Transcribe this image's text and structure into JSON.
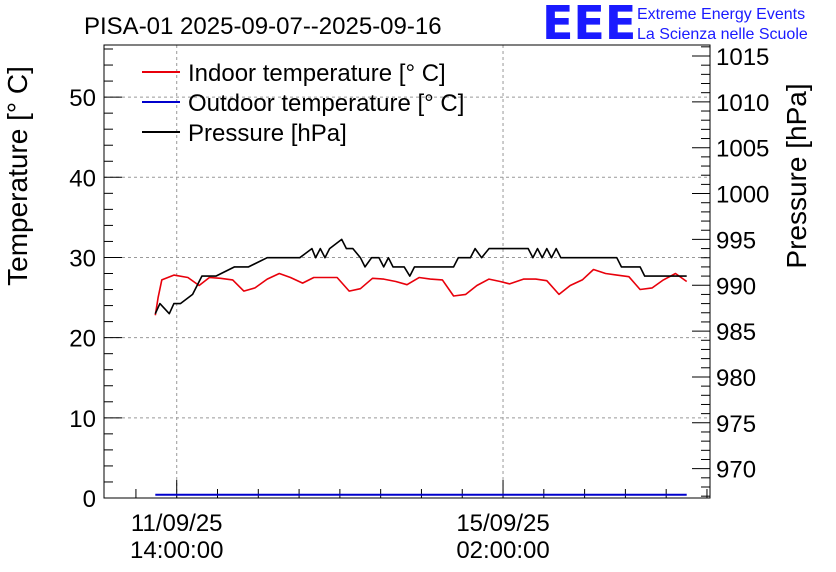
{
  "chart_data": {
    "type": "line",
    "title": "PISA-01 2025-09-07--2025-09-16",
    "brand": {
      "logo_text": "EEE",
      "line1": "Extreme Energy Events",
      "line2": "La Scienza nelle Scuole"
    },
    "x_ticks": [
      {
        "label_line1": "11/09/25",
        "label_line2": "14:00:00",
        "x_days": 4.58
      },
      {
        "label_line1": "15/09/25",
        "label_line2": "02:00:00",
        "x_days": 8.08
      }
    ],
    "x_range_days": [
      3.8,
      10.3
    ],
    "left_axis": {
      "label": "Temperature [° C]",
      "ylim": [
        0,
        56.5
      ],
      "ticks": [
        0,
        10,
        20,
        30,
        40,
        50
      ]
    },
    "right_axis": {
      "label": "Pressure [hPa]",
      "ylim": [
        966.8,
        1016.2
      ],
      "ticks": [
        970,
        975,
        980,
        985,
        990,
        995,
        1000,
        1005,
        1010,
        1015
      ]
    },
    "colors": {
      "indoor": "#e8000b",
      "outdoor": "#0000cc",
      "pressure": "#000000",
      "grid": "#999999"
    },
    "series": [
      {
        "name": "Indoor temperature [° C]",
        "axis": "left",
        "x": [
          4.35,
          4.38,
          4.42,
          4.55,
          4.7,
          4.82,
          4.93,
          5.05,
          5.18,
          5.3,
          5.42,
          5.55,
          5.68,
          5.8,
          5.93,
          6.05,
          6.18,
          6.3,
          6.43,
          6.55,
          6.68,
          6.8,
          6.93,
          7.05,
          7.18,
          7.3,
          7.43,
          7.55,
          7.68,
          7.8,
          7.93,
          8.05,
          8.15,
          8.3,
          8.43,
          8.55,
          8.68,
          8.8,
          8.93,
          9.05,
          9.18,
          9.3,
          9.43,
          9.55,
          9.68,
          9.8,
          9.93,
          10.05
        ],
        "y": [
          22.8,
          25.0,
          27.2,
          27.8,
          27.5,
          26.5,
          27.5,
          27.4,
          27.2,
          25.8,
          26.2,
          27.3,
          28.0,
          27.5,
          26.8,
          27.5,
          27.5,
          27.5,
          25.8,
          26.1,
          27.4,
          27.3,
          27.0,
          26.6,
          27.5,
          27.3,
          27.2,
          25.2,
          25.4,
          26.5,
          27.3,
          27.0,
          26.7,
          27.3,
          27.3,
          27.1,
          25.4,
          26.5,
          27.2,
          28.5,
          28.0,
          27.8,
          27.6,
          26.0,
          26.2,
          27.2,
          28.0,
          27.0
        ]
      },
      {
        "name": "Outdoor temperature [° C]",
        "axis": "left",
        "x": [
          4.35,
          10.05
        ],
        "y": [
          0.4,
          0.4
        ]
      },
      {
        "name": "Pressure [hPa]",
        "axis": "right",
        "x": [
          4.35,
          4.4,
          4.5,
          4.55,
          4.62,
          4.75,
          4.85,
          4.92,
          5.0,
          5.2,
          5.35,
          5.55,
          5.9,
          6.03,
          6.07,
          6.12,
          6.17,
          6.22,
          6.35,
          6.4,
          6.47,
          6.55,
          6.6,
          6.67,
          6.75,
          6.8,
          6.85,
          6.9,
          6.95,
          7.02,
          7.08,
          7.13,
          7.17,
          7.25,
          7.55,
          7.6,
          7.65,
          7.73,
          7.78,
          7.85,
          7.93,
          7.97,
          8.02,
          8.1,
          8.35,
          8.4,
          8.45,
          8.5,
          8.55,
          8.6,
          8.65,
          8.7,
          8.75,
          8.8,
          9.3,
          9.35,
          9.55,
          9.6,
          9.65,
          9.7,
          10.05
        ],
        "y": [
          986.9,
          988.0,
          986.9,
          988.0,
          988.0,
          989.0,
          991.0,
          991.0,
          991.0,
          992.0,
          992.0,
          993.0,
          993.0,
          994.0,
          993.0,
          994.0,
          993.0,
          994.0,
          995.0,
          994.0,
          994.0,
          993.0,
          992.0,
          993.0,
          993.0,
          992.0,
          993.0,
          992.0,
          992.0,
          992.0,
          991.0,
          992.0,
          992.0,
          992.0,
          992.0,
          993.0,
          993.0,
          993.0,
          994.0,
          993.0,
          994.0,
          994.0,
          994.0,
          994.0,
          994.0,
          993.0,
          994.0,
          993.0,
          994.0,
          993.0,
          994.0,
          993.0,
          993.0,
          993.0,
          993.0,
          992.0,
          992.0,
          991.0,
          991.0,
          991.0,
          991.0
        ]
      }
    ]
  }
}
